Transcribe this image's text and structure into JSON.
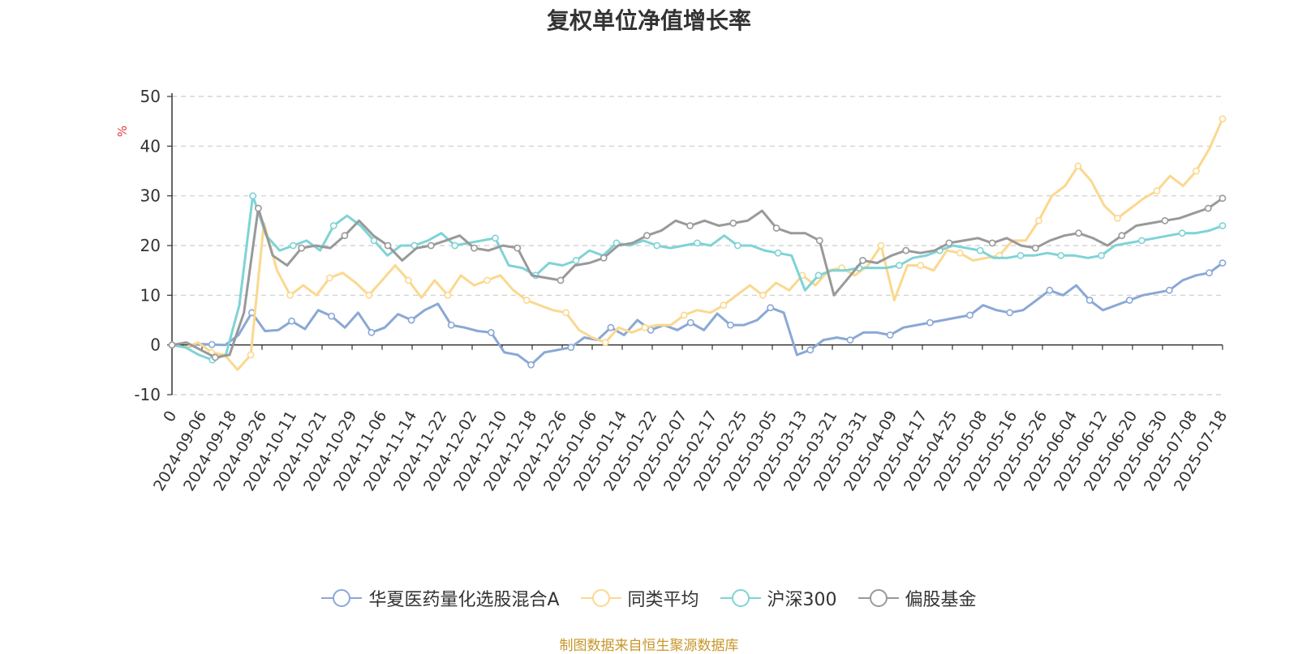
{
  "chart_data": {
    "type": "line",
    "title": "复权单位净值增长率",
    "ylabel": "%",
    "xlabel": "",
    "ylim": [
      -10,
      50
    ],
    "yticks": [
      -10,
      0,
      10,
      20,
      30,
      40,
      50
    ],
    "grid": true,
    "legend_position": "bottom",
    "x_tick_labels": [
      "0",
      "2024-09-06",
      "2024-09-18",
      "2024-09-26",
      "2024-10-11",
      "2024-10-21",
      "2024-10-29",
      "2024-11-06",
      "2024-11-14",
      "2024-11-22",
      "2024-12-02",
      "2024-12-10",
      "2024-12-18",
      "2024-12-26",
      "2025-01-06",
      "2025-01-14",
      "2025-01-22",
      "2025-02-07",
      "2025-02-17",
      "2025-02-25",
      "2025-03-05",
      "2025-03-13",
      "2025-03-21",
      "2025-03-31",
      "2025-04-09",
      "2025-04-17",
      "2025-04-25",
      "2025-05-08",
      "2025-05-16",
      "2025-05-26",
      "2025-06-04",
      "2025-06-12",
      "2025-06-20",
      "2025-06-30",
      "2025-07-08",
      "2025-07-18"
    ],
    "series": [
      {
        "name": "华夏医药量化选股混合A",
        "color": "#8aa8d6",
        "values": [
          0,
          -0.5,
          0.2,
          0.1,
          0,
          2.0,
          6.5,
          2.8,
          3.0,
          4.8,
          3.2,
          7.0,
          5.8,
          3.5,
          6.5,
          2.5,
          3.5,
          6.2,
          5.0,
          7.0,
          8.3,
          4.0,
          3.5,
          2.8,
          2.5,
          -1.5,
          -2.0,
          -4.0,
          -1.5,
          -1.0,
          -0.5,
          1.5,
          1.0,
          3.5,
          2.0,
          5.0,
          3.0,
          4.0,
          3.0,
          4.5,
          3.0,
          6.3,
          4.0,
          4.0,
          5.0,
          7.5,
          6.5,
          -2.0,
          -1.0,
          1.0,
          1.5,
          1.0,
          2.5,
          2.5,
          2.0,
          3.5,
          4.0,
          4.5,
          5.0,
          5.5,
          6.0,
          8.0,
          7.0,
          6.5,
          7.0,
          9.0,
          11.0,
          10.0,
          12.0,
          9.0,
          7.0,
          8.0,
          9.0,
          10.0,
          10.5,
          11.0,
          13.0,
          14.0,
          14.5,
          16.5
        ]
      },
      {
        "name": "同类平均",
        "color": "#fbd88f",
        "values": [
          0,
          -0.5,
          0.5,
          -1.5,
          -2.0,
          -5.0,
          -2.0,
          24.5,
          15.0,
          10.0,
          12.0,
          10.0,
          13.5,
          14.5,
          12.5,
          10.0,
          13.0,
          16.0,
          13.0,
          9.5,
          13.0,
          10.0,
          14.0,
          12.0,
          13.0,
          14.0,
          11.0,
          9.0,
          8.0,
          7.0,
          6.5,
          3.0,
          1.5,
          0.5,
          3.5,
          2.5,
          3.5,
          4.0,
          4.0,
          6.0,
          7.0,
          6.5,
          8.0,
          10.0,
          12.0,
          10.0,
          12.5,
          11.0,
          14.0,
          12.0,
          15.0,
          15.5,
          14.0,
          16.0,
          20.0,
          9.0,
          16.0,
          16.0,
          15.0,
          19.0,
          18.5,
          17.0,
          17.5,
          18.0,
          21.0,
          21.0,
          25.0,
          30.0,
          32.0,
          36.0,
          33.0,
          28.0,
          25.5,
          27.5,
          29.5,
          31.0,
          34.0,
          32.0,
          35.0,
          39.5,
          45.5
        ]
      },
      {
        "name": "沪深300",
        "color": "#7fd3d6",
        "values": [
          0,
          -0.5,
          -2.0,
          -3.0,
          -2.0,
          8.0,
          30.0,
          22.0,
          19.0,
          20.0,
          21.0,
          19.0,
          24.0,
          26.0,
          24.0,
          21.0,
          18.0,
          20.0,
          20.0,
          21.0,
          22.5,
          20.0,
          20.5,
          21.0,
          21.5,
          16.0,
          15.5,
          14.0,
          16.5,
          16.0,
          17.0,
          19.0,
          18.0,
          20.5,
          20.0,
          21.0,
          20.0,
          19.5,
          20.0,
          20.5,
          20.0,
          22.0,
          20.0,
          20.0,
          19.0,
          18.5,
          18.0,
          11.0,
          14.0,
          15.0,
          15.0,
          15.5,
          15.5,
          15.5,
          16.0,
          17.5,
          18.0,
          19.0,
          20.0,
          19.5,
          19.0,
          17.5,
          17.5,
          18.0,
          18.0,
          18.5,
          18.0,
          18.0,
          17.5,
          18.0,
          20.0,
          20.5,
          21.0,
          21.5,
          22.0,
          22.5,
          22.5,
          23.0,
          24.0
        ]
      },
      {
        "name": "偏股基金",
        "color": "#999999",
        "values": [
          0,
          0.5,
          -1.0,
          -2.5,
          -2.0,
          6.5,
          27.5,
          18.0,
          16.0,
          19.5,
          20.0,
          19.5,
          22.0,
          25.0,
          22.0,
          20.0,
          17.0,
          19.5,
          20.0,
          21.0,
          22.0,
          19.5,
          19.0,
          20.0,
          19.5,
          14.0,
          13.5,
          13.0,
          16.0,
          16.5,
          17.5,
          20.0,
          20.5,
          22.0,
          23.0,
          25.0,
          24.0,
          25.0,
          24.0,
          24.5,
          25.0,
          27.0,
          23.5,
          22.5,
          22.5,
          21.0,
          10.0,
          13.5,
          17.0,
          16.5,
          18.0,
          19.0,
          18.5,
          19.0,
          20.5,
          21.0,
          21.5,
          20.5,
          21.5,
          20.0,
          19.5,
          21.0,
          22.0,
          22.5,
          21.5,
          20.0,
          22.0,
          24.0,
          24.5,
          25.0,
          25.5,
          26.5,
          27.5,
          29.5
        ]
      }
    ],
    "source": "制图数据来自恒生聚源数据库"
  }
}
